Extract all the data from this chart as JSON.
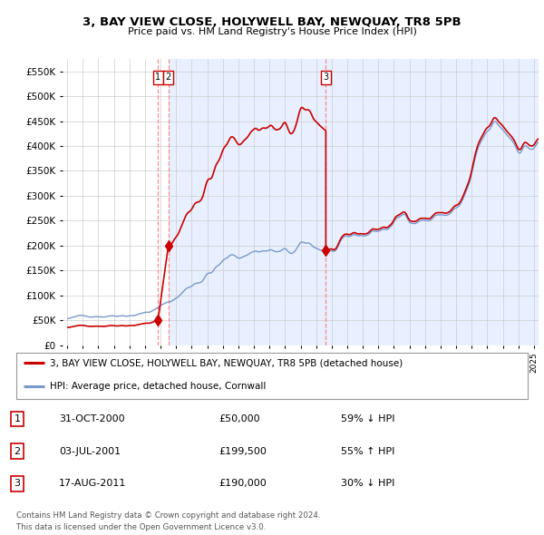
{
  "title": "3, BAY VIEW CLOSE, HOLYWELL BAY, NEWQUAY, TR8 5PB",
  "subtitle": "Price paid vs. HM Land Registry's House Price Index (HPI)",
  "legend_property": "3, BAY VIEW CLOSE, HOLYWELL BAY, NEWQUAY, TR8 5PB (detached house)",
  "legend_hpi": "HPI: Average price, detached house, Cornwall",
  "footer1": "Contains HM Land Registry data © Crown copyright and database right 2024.",
  "footer2": "This data is licensed under the Open Government Licence v3.0.",
  "sales": [
    {
      "num": 1,
      "date": "31-OCT-2000",
      "date_val": 2000.833,
      "price": 50000,
      "pct": "59%",
      "dir": "↓"
    },
    {
      "num": 2,
      "date": "03-JUL-2001",
      "date_val": 2001.5,
      "price": 199500,
      "pct": "55%",
      "dir": "↑"
    },
    {
      "num": 3,
      "date": "17-AUG-2011",
      "date_val": 2011.625,
      "price": 190000,
      "pct": "30%",
      "dir": "↓"
    }
  ],
  "ylim": [
    0,
    575000
  ],
  "yticks": [
    0,
    50000,
    100000,
    150000,
    200000,
    250000,
    300000,
    350000,
    400000,
    450000,
    500000,
    550000
  ],
  "xlim_start": 1994.7,
  "xlim_end": 2025.3,
  "plot_bg_left": "#ffffff",
  "plot_bg_right": "#e8eeff",
  "red_color": "#cc0000",
  "blue_color": "#7799cc",
  "vline_color": "#ff8888"
}
